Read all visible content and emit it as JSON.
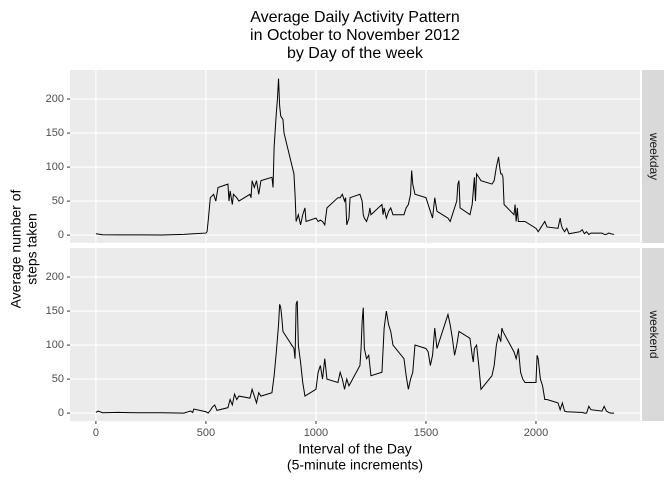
{
  "chart_data": {
    "type": "line",
    "title": [
      "Average Daily Activity Pattern",
      "in October to November 2012",
      "by Day of the week"
    ],
    "x_label": [
      "Interval of the Day",
      "(5-minute increments)"
    ],
    "y_label": [
      "Average number of",
      "steps taken"
    ],
    "xlim": [
      -117.75,
      2472.75
    ],
    "xticks": [
      0,
      500,
      1000,
      1500,
      2000
    ],
    "ylim": [
      -11.6,
      242.7
    ],
    "yticks": [
      0,
      50,
      100,
      150,
      200
    ],
    "grid": true,
    "series": [
      {
        "name": "weekday",
        "color": "#000000",
        "x": [
          0,
          30,
          100,
          200,
          300,
          400,
          445,
          500,
          505,
          510,
          520,
          535,
          545,
          555,
          600,
          605,
          610,
          620,
          625,
          640,
          650,
          700,
          705,
          710,
          720,
          730,
          740,
          750,
          800,
          805,
          810,
          820,
          825,
          830,
          835,
          840,
          850,
          855,
          900,
          905,
          910,
          920,
          930,
          940,
          950,
          955,
          1000,
          1010,
          1020,
          1030,
          1040,
          1050,
          1100,
          1110,
          1120,
          1130,
          1135,
          1140,
          1150,
          1155,
          1200,
          1210,
          1215,
          1220,
          1230,
          1240,
          1245,
          1250,
          1300,
          1305,
          1310,
          1320,
          1330,
          1340,
          1350,
          1400,
          1410,
          1420,
          1430,
          1435,
          1440,
          1450,
          1500,
          1510,
          1520,
          1530,
          1540,
          1550,
          1600,
          1610,
          1620,
          1630,
          1640,
          1645,
          1650,
          1655,
          1700,
          1710,
          1720,
          1725,
          1730,
          1740,
          1750,
          1800,
          1810,
          1820,
          1830,
          1835,
          1840,
          1845,
          1850,
          1855,
          1900,
          1905,
          1910,
          1915,
          1920,
          1930,
          1940,
          1950,
          2000,
          2010,
          2020,
          2030,
          2040,
          2050,
          2100,
          2110,
          2115,
          2120,
          2130,
          2140,
          2150,
          2200,
          2210,
          2220,
          2230,
          2240,
          2250,
          2300,
          2310,
          2320,
          2330,
          2340,
          2355
        ],
        "values": [
          2,
          0.5,
          0.4,
          0.3,
          0.2,
          1,
          2,
          3,
          5,
          20,
          55,
          60,
          50,
          70,
          75,
          50,
          65,
          45,
          60,
          55,
          50,
          60,
          55,
          80,
          70,
          80,
          60,
          80,
          85,
          70,
          130,
          180,
          200,
          230,
          190,
          175,
          170,
          150,
          90,
          60,
          20,
          30,
          15,
          30,
          40,
          20,
          25,
          20,
          22,
          20,
          15,
          40,
          55,
          55,
          60,
          50,
          55,
          15,
          25,
          55,
          60,
          50,
          30,
          25,
          20,
          30,
          40,
          30,
          45,
          30,
          40,
          25,
          35,
          40,
          30,
          30,
          40,
          45,
          60,
          95,
          75,
          60,
          55,
          45,
          35,
          25,
          55,
          35,
          25,
          20,
          30,
          40,
          50,
          75,
          80,
          40,
          30,
          45,
          85,
          50,
          90,
          85,
          80,
          75,
          80,
          100,
          115,
          100,
          90,
          90,
          85,
          45,
          30,
          45,
          20,
          40,
          20,
          20,
          20,
          20,
          10,
          5,
          10,
          15,
          20,
          12,
          10,
          25,
          15,
          10,
          5,
          10,
          2,
          5,
          8,
          2,
          5,
          1,
          3,
          3,
          1,
          1,
          3,
          2,
          1
        ]
      },
      {
        "name": "weekend",
        "color": "#000000",
        "x": [
          0,
          10,
          30,
          100,
          200,
          300,
          400,
          430,
          440,
          445,
          500,
          510,
          520,
          530,
          540,
          550,
          600,
          610,
          620,
          630,
          640,
          650,
          700,
          710,
          720,
          730,
          740,
          750,
          800,
          810,
          820,
          830,
          835,
          840,
          845,
          850,
          900,
          905,
          910,
          915,
          920,
          930,
          940,
          950,
          1000,
          1010,
          1020,
          1030,
          1040,
          1050,
          1100,
          1110,
          1120,
          1130,
          1140,
          1150,
          1200,
          1205,
          1210,
          1215,
          1220,
          1230,
          1240,
          1250,
          1300,
          1310,
          1320,
          1330,
          1340,
          1350,
          1400,
          1410,
          1420,
          1430,
          1440,
          1450,
          1500,
          1510,
          1520,
          1530,
          1540,
          1550,
          1600,
          1610,
          1620,
          1630,
          1640,
          1650,
          1700,
          1710,
          1715,
          1720,
          1730,
          1740,
          1750,
          1800,
          1810,
          1820,
          1830,
          1840,
          1845,
          1850,
          1900,
          1910,
          1920,
          1930,
          1940,
          1950,
          2000,
          2005,
          2010,
          2020,
          2030,
          2040,
          2050,
          2100,
          2110,
          2120,
          2130,
          2140,
          2200,
          2210,
          2220,
          2230,
          2240,
          2250,
          2300,
          2310,
          2320,
          2330,
          2340,
          2355
        ],
        "values": [
          1,
          3,
          0.5,
          1,
          0.5,
          0.5,
          0,
          3,
          1,
          6,
          2,
          0,
          4,
          9,
          12,
          4,
          8,
          20,
          12,
          28,
          20,
          25,
          22,
          35,
          25,
          15,
          30,
          25,
          30,
          55,
          90,
          130,
          160,
          155,
          140,
          120,
          95,
          80,
          160,
          165,
          100,
          75,
          45,
          25,
          35,
          60,
          70,
          50,
          80,
          50,
          45,
          60,
          50,
          35,
          50,
          40,
          70,
          95,
          135,
          155,
          95,
          80,
          85,
          55,
          60,
          125,
          150,
          130,
          120,
          100,
          80,
          55,
          35,
          50,
          60,
          100,
          95,
          90,
          70,
          85,
          125,
          95,
          145,
          130,
          110,
          85,
          100,
          120,
          110,
          85,
          75,
          95,
          100,
          70,
          35,
          55,
          70,
          100,
          115,
          105,
          125,
          120,
          90,
          80,
          95,
          60,
          50,
          45,
          45,
          85,
          80,
          50,
          40,
          20,
          20,
          15,
          5,
          15,
          3,
          2,
          1,
          1,
          0,
          0,
          10,
          5,
          3,
          10,
          3,
          1,
          0,
          0
        ]
      }
    ]
  }
}
